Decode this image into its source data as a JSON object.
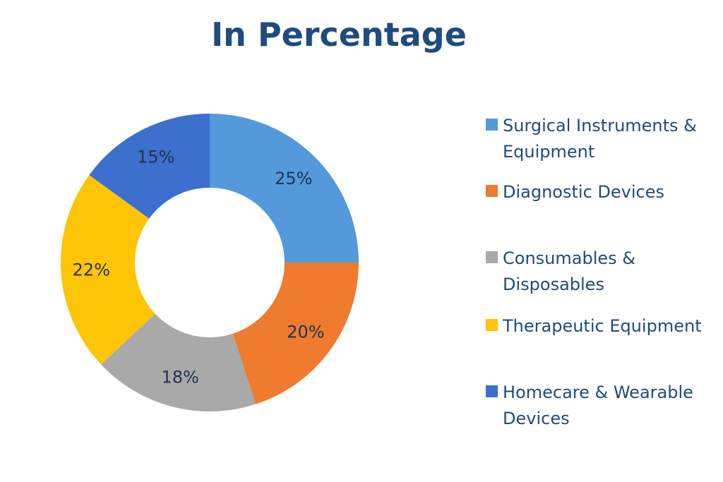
{
  "title": "In Percentage",
  "chart_data": {
    "type": "pie",
    "variant": "donut",
    "title": "In Percentage",
    "categories": [
      "Surgical Instruments & Equipment",
      "Diagnostic Devices",
      "Consumables & Disposables",
      "Therapeutic Equipment",
      "Homecare & Wearable Devices"
    ],
    "values": [
      25,
      20,
      18,
      22,
      15
    ],
    "labels": [
      "25%",
      "20%",
      "18%",
      "22%",
      "15%"
    ],
    "colors": [
      "#5499da",
      "#ee7b2e",
      "#a9a9a9",
      "#fdc506",
      "#3c6fce"
    ],
    "legend_position": "right",
    "start_angle": "top",
    "direction": "clockwise"
  },
  "legend": [
    {
      "label": "Surgical Instruments & Equipment",
      "color": "#5499da"
    },
    {
      "label": "Diagnostic Devices",
      "color": "#ee7b2e"
    },
    {
      "label": "Consumables & Disposables",
      "color": "#a9a9a9"
    },
    {
      "label": "Therapeutic Equipment",
      "color": "#fdc506"
    },
    {
      "label": "Homecare & Wearable Devices",
      "color": "#3c6fce"
    }
  ]
}
